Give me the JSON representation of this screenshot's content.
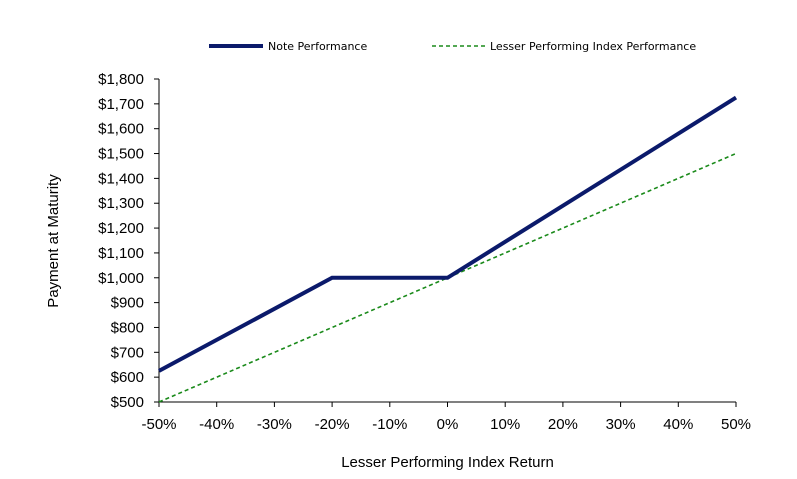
{
  "chart_data": {
    "type": "line",
    "title": "",
    "xlabel": "Lesser Performing Index Return",
    "ylabel": "Payment at Maturity",
    "x_tick_labels": [
      "-50%",
      "-40%",
      "-30%",
      "-20%",
      "-10%",
      "0%",
      "10%",
      "20%",
      "30%",
      "40%",
      "50%"
    ],
    "y_tick_labels": [
      "$500",
      "$600",
      "$700",
      "$800",
      "$900",
      "$1,000",
      "$1,100",
      "$1,200",
      "$1,300",
      "$1,400",
      "$1,500",
      "$1,600",
      "$1,700",
      "$1,800"
    ],
    "xlim": [
      -50,
      50
    ],
    "ylim": [
      500,
      1800
    ],
    "x_ticks": [
      -50,
      -40,
      -30,
      -20,
      -10,
      0,
      10,
      20,
      30,
      40,
      50
    ],
    "y_ticks": [
      500,
      600,
      700,
      800,
      900,
      1000,
      1100,
      1200,
      1300,
      1400,
      1500,
      1600,
      1700,
      1800
    ],
    "grid": false,
    "legend_position": "top",
    "series": [
      {
        "name": "Note Performance",
        "color": "#0b1a6b",
        "style": "solid",
        "x": [
          -50,
          -20,
          0,
          50
        ],
        "y": [
          625,
          1000,
          1000,
          1725
        ]
      },
      {
        "name": "Lesser Performing Index Performance",
        "color": "#1a8a1a",
        "style": "dashed",
        "x": [
          -50,
          0,
          50
        ],
        "y": [
          500,
          1000,
          1500
        ]
      }
    ]
  }
}
